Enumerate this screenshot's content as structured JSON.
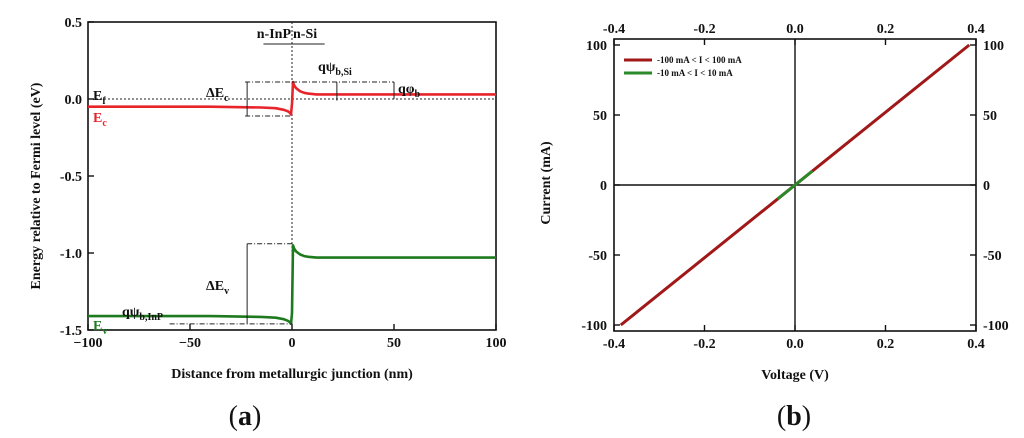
{
  "chart_data": [
    {
      "type": "line",
      "panel_label": "a",
      "xlabel": "Distance from metallurgic junction (nm)",
      "ylabel": "Energy relative to Fermi level (eV)",
      "xlim": [
        -100,
        100
      ],
      "ylim": [
        -1.5,
        0.5
      ],
      "x_ticks": [
        -100,
        -50,
        0,
        50,
        100
      ],
      "y_ticks": [
        0.5,
        0.0,
        -0.5,
        -1.0,
        -1.5
      ],
      "x_tick_labels": [
        "−100",
        "−50",
        "0",
        "50",
        "100"
      ],
      "y_tick_labels": [
        "0.5",
        "0.0",
        "-0.5",
        "-1.0",
        "-1.5"
      ],
      "grid": false,
      "series": [
        {
          "name": "Ec",
          "color": "#e8242b",
          "x": [
            -100,
            -40,
            -15,
            -8,
            -4,
            -2,
            -1,
            -0.5,
            0,
            0.5,
            1,
            2,
            4,
            6,
            8,
            12,
            20,
            40,
            100
          ],
          "y": [
            -0.05,
            -0.05,
            -0.055,
            -0.06,
            -0.07,
            -0.08,
            -0.09,
            -0.1,
            -0.03,
            0.11,
            0.09,
            0.07,
            0.05,
            0.04,
            0.035,
            0.03,
            0.03,
            0.03,
            0.03
          ]
        },
        {
          "name": "Ev",
          "color": "#1e7a1e",
          "x": [
            -100,
            -40,
            -15,
            -8,
            -4,
            -2,
            -1,
            -0.5,
            0,
            0.5,
            1,
            2,
            4,
            6,
            8,
            12,
            20,
            40,
            100
          ],
          "y": [
            -1.41,
            -1.41,
            -1.415,
            -1.42,
            -1.43,
            -1.44,
            -1.45,
            -1.46,
            -1.39,
            -0.95,
            -0.97,
            -0.99,
            -1.01,
            -1.02,
            -1.025,
            -1.03,
            -1.03,
            -1.03,
            -1.03
          ]
        }
      ],
      "annotations": {
        "junction": "n-InP n-Si",
        "junction_left": "n-InP",
        "junction_right": "n-Si",
        "Ef": "E",
        "Ef_sub": "f",
        "Ec": "E",
        "Ec_sub": "c",
        "Ev": "E",
        "Ev_sub": "v",
        "dEc": "ΔE",
        "dEc_sub": "c",
        "dEv": "ΔE",
        "dEv_sub": "v",
        "qpsi_si": "qψ",
        "qpsi_si_sub": "b,Si",
        "qpsi_inp": "qψ",
        "qpsi_inp_sub": "b,InP",
        "qphi": "qφ",
        "qphi_sub": "b"
      }
    },
    {
      "type": "line",
      "panel_label": "b",
      "xlabel": "Voltage (V)",
      "ylabel": "Current (mA)",
      "xlim": [
        -0.4,
        0.4
      ],
      "ylim": [
        -100,
        100
      ],
      "x_ticks": [
        -0.4,
        -0.2,
        0.0,
        0.2,
        0.4
      ],
      "y_ticks": [
        100,
        50,
        0,
        -50,
        -100
      ],
      "x_tick_labels": [
        "-0.4",
        "-0.2",
        "0.0",
        "0.2",
        "0.4"
      ],
      "y_tick_labels": [
        "100",
        "50",
        "0",
        "-50",
        "-100"
      ],
      "grid": false,
      "legend": "top-left",
      "series": [
        {
          "name": "-100 mA < I < 100 mA",
          "color": "#a01818",
          "x": [
            -0.385,
            0.385
          ],
          "y": [
            -100,
            100
          ]
        },
        {
          "name": "-10 mA < I < 10 mA",
          "color": "#2a8a2a",
          "x": [
            -0.0385,
            0.0385
          ],
          "y": [
            -10,
            10
          ]
        }
      ]
    }
  ]
}
